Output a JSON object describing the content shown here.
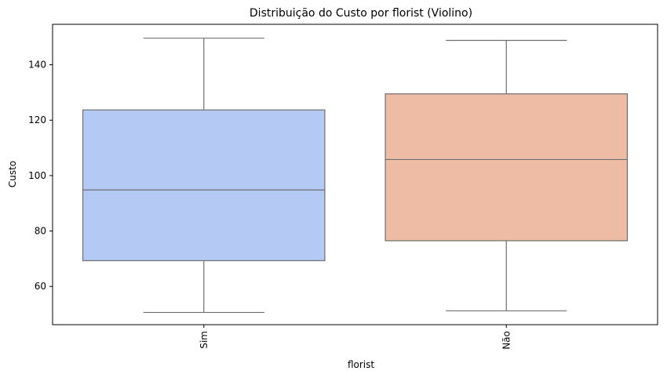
{
  "chart_data": {
    "type": "box",
    "title": "Distribuição do Custo por florist (Violino)",
    "xlabel": "florist",
    "ylabel": "Custo",
    "categories": [
      "Sim",
      "Não"
    ],
    "boxes": [
      {
        "category": "Sim",
        "min": 50.6,
        "q1": 69.3,
        "median": 94.8,
        "q3": 123.7,
        "max": 149.6,
        "color": "#b5c9f5"
      },
      {
        "category": "Não",
        "min": 51.2,
        "q1": 76.5,
        "median": 105.8,
        "q3": 129.5,
        "max": 148.8,
        "color": "#eebba4"
      }
    ],
    "ylim": [
      46.2,
      154.6
    ],
    "yticks": [
      60,
      80,
      100,
      120,
      140
    ],
    "grid": false,
    "line_color": "#6f6f6f"
  }
}
